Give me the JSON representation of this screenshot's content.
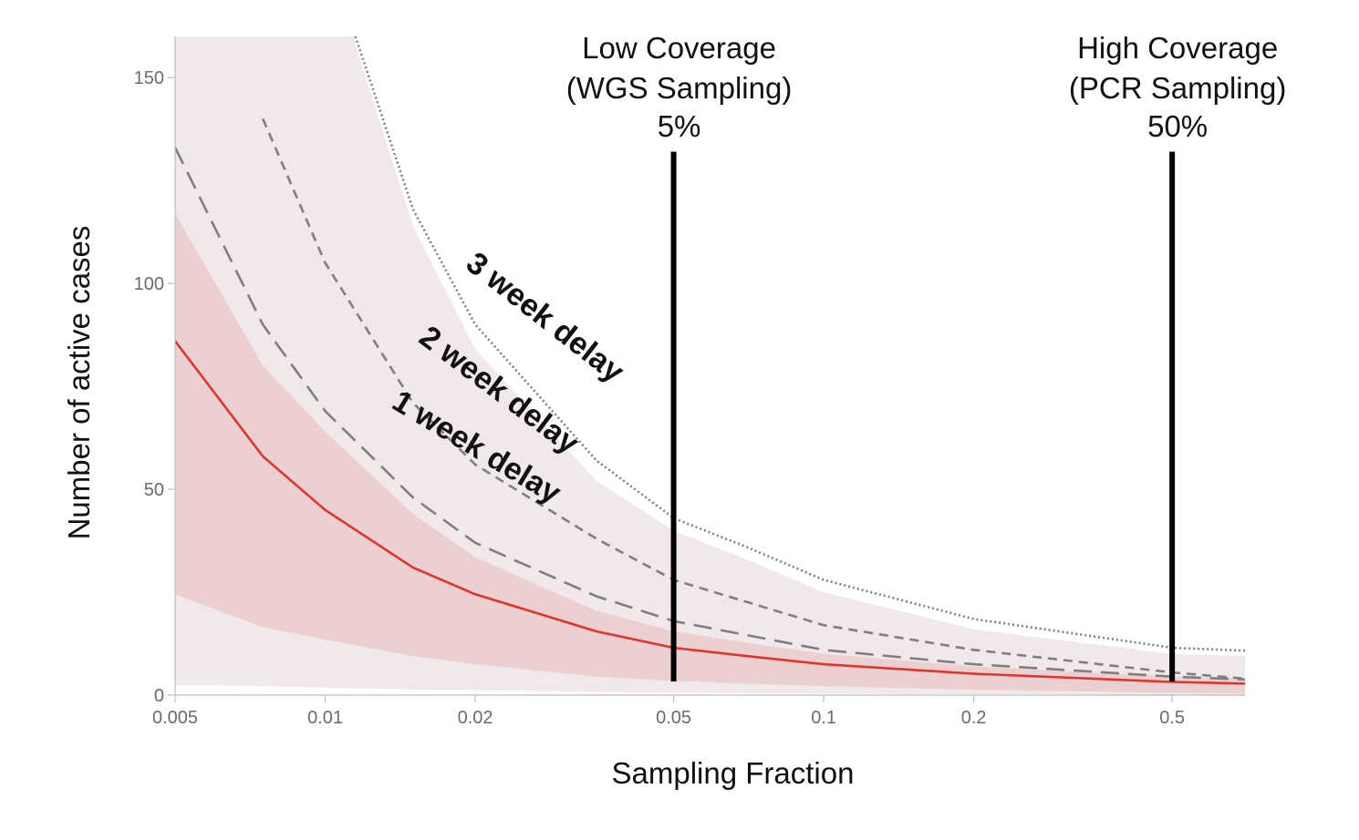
{
  "chart_data": {
    "type": "line",
    "xlabel": "Sampling Fraction",
    "ylabel": "Number of active cases",
    "xscale": "log",
    "xlim": [
      0.005,
      0.7
    ],
    "ylim": [
      0,
      160
    ],
    "x_ticks": [
      0.005,
      0.01,
      0.02,
      0.05,
      0.1,
      0.2,
      0.5
    ],
    "x_tick_labels": [
      "0.005",
      "0.01",
      "0.02",
      "0.05",
      "0.1",
      "0.2",
      "0.5"
    ],
    "y_ticks": [
      0,
      50,
      100,
      150
    ],
    "y_tick_labels": [
      "0",
      "50",
      "100",
      "150"
    ],
    "grid": false,
    "colors": {
      "line_1w": "#e0352b",
      "band_1w": "#eccfd1",
      "band_outer": "#f1e8e9",
      "dashed": "#7f7f7f",
      "dotted": "#7f7f7f",
      "vline": "#000000"
    },
    "series": [
      {
        "name": "1 week delay",
        "style": "solid",
        "x": [
          0.005,
          0.0075,
          0.01,
          0.015,
          0.02,
          0.035,
          0.05,
          0.07,
          0.1,
          0.2,
          0.5,
          0.7
        ],
        "y": [
          86,
          58,
          45,
          31,
          24.5,
          15.5,
          11.5,
          9.5,
          7.5,
          5.2,
          3.2,
          2.8
        ],
        "band_upper": [
          117,
          80,
          64,
          44,
          33.5,
          20.5,
          15.5,
          12.8,
          10,
          7,
          4.5,
          4
        ],
        "band_lower": [
          24.5,
          16.5,
          13.5,
          9.5,
          7.5,
          4.5,
          3.5,
          2.8,
          2.2,
          1.3,
          0.6,
          0.4
        ]
      },
      {
        "name": "2 week delay",
        "style": "dashed-fine",
        "x": [
          0.0075,
          0.01,
          0.015,
          0.02,
          0.035,
          0.05,
          0.1,
          0.2,
          0.5,
          0.7
        ],
        "y": [
          140,
          105,
          71,
          56,
          38,
          28,
          17,
          11,
          5.5,
          4
        ]
      },
      {
        "name": "",
        "style": "dashed-long",
        "x": [
          0.005,
          0.0075,
          0.01,
          0.015,
          0.02,
          0.035,
          0.05,
          0.1,
          0.2,
          0.5,
          0.7
        ],
        "y": [
          133,
          90,
          69,
          48,
          37,
          24,
          18,
          11,
          7.5,
          4.5,
          3.8
        ]
      },
      {
        "name": "3 week delay",
        "style": "dotted",
        "x": [
          0.0115,
          0.015,
          0.02,
          0.035,
          0.05,
          0.07,
          0.1,
          0.2,
          0.5,
          0.7
        ],
        "y": [
          160,
          118,
          90,
          57,
          43,
          36,
          28,
          18.5,
          11.5,
          10.8
        ]
      }
    ],
    "outer_band": {
      "x": [
        0.005,
        0.0075,
        0.01,
        0.015,
        0.02,
        0.035,
        0.05,
        0.07,
        0.1,
        0.2,
        0.5,
        0.7
      ],
      "upper": [
        160,
        160,
        160,
        160,
        160,
        160,
        160,
        160,
        160,
        160,
        160,
        160
      ],
      "lower": [
        2.5,
        2.2,
        1.8,
        1.4,
        1.2,
        0.8,
        0.6,
        0.5,
        0.4,
        0.2,
        0.1,
        0.1
      ]
    },
    "upper_bound_curve": {
      "x": [
        0.0115,
        0.015,
        0.02,
        0.035,
        0.05,
        0.07,
        0.1,
        0.2,
        0.5,
        0.7
      ],
      "y": [
        158,
        114,
        84,
        52,
        40,
        33,
        25,
        16,
        10,
        9.5
      ]
    },
    "vertical_lines": [
      {
        "x": 0.05,
        "y_top": 132,
        "title_line1": "Low Coverage",
        "title_line2": "(WGS Sampling)",
        "pct": "5%"
      },
      {
        "x": 0.5,
        "y_top": 132,
        "title_line1": "High Coverage",
        "title_line2": "(PCR Sampling)",
        "pct": "50%"
      }
    ],
    "delay_labels": [
      {
        "text": "1 week delay",
        "angle": 31
      },
      {
        "text": "2 week delay",
        "angle": 37
      },
      {
        "text": "3 week delay",
        "angle": 38
      }
    ]
  }
}
